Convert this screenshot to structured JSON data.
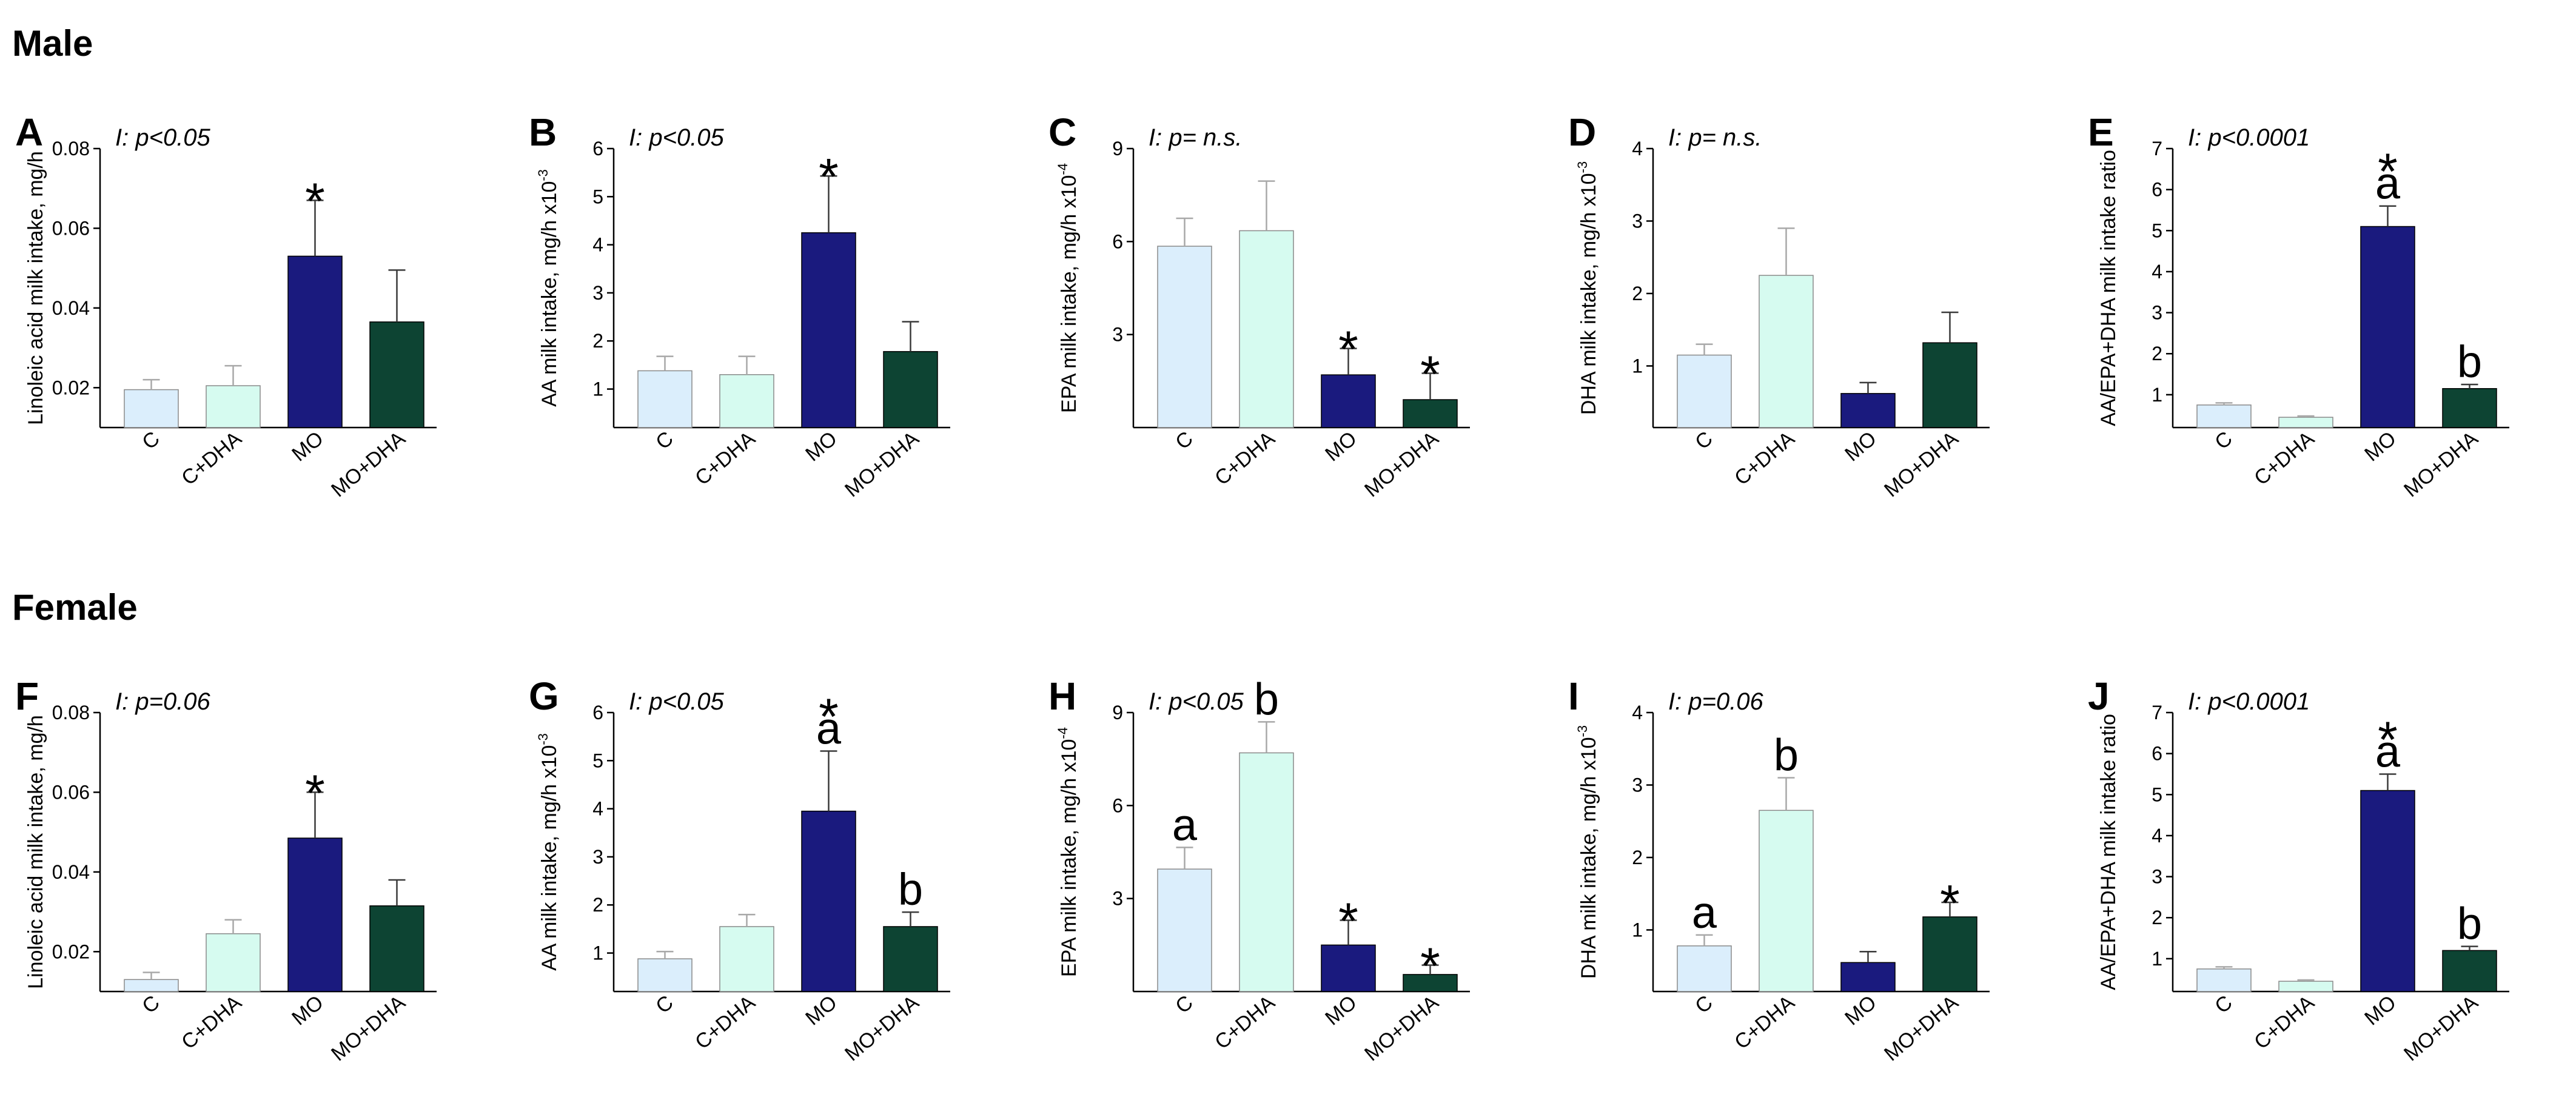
{
  "sections": [
    {
      "title": "Male"
    },
    {
      "title": "Female"
    }
  ],
  "groups": [
    "C",
    "C+DHA",
    "MO",
    "MO+DHA"
  ],
  "colors": [
    "#dbeefc",
    "#d6fbf0",
    "#1a1a7e",
    "#0d4433"
  ],
  "chart_data": [
    {
      "panel": "A",
      "section": "Male",
      "type": "bar",
      "stat": "I: p<0.05",
      "ylabel": "Linoleic acid milk intake, mg/h",
      "ylabel_exp": "",
      "ylim": [
        0.01,
        0.08
      ],
      "ticks": [
        "0.02",
        "0.04",
        "0.06",
        "0.08"
      ],
      "tick_values": [
        0.02,
        0.04,
        0.06,
        0.08
      ],
      "categories": [
        "C",
        "C+DHA",
        "MO",
        "MO+DHA"
      ],
      "values": [
        0.0195,
        0.0205,
        0.053,
        0.0365
      ],
      "errors": [
        0.0025,
        0.005,
        0.014,
        0.013
      ],
      "annotations": [
        [],
        [],
        [
          "*"
        ],
        []
      ]
    },
    {
      "panel": "B",
      "section": "Male",
      "type": "bar",
      "stat": "I: p<0.05",
      "ylabel": "AA milk intake, mg/h x10",
      "ylabel_exp": "-3",
      "ylim": [
        0.2,
        6
      ],
      "ticks": [
        "1",
        "2",
        "3",
        "4",
        "5",
        "6"
      ],
      "tick_values": [
        1,
        2,
        3,
        4,
        5,
        6
      ],
      "categories": [
        "C",
        "C+DHA",
        "MO",
        "MO+DHA"
      ],
      "values": [
        1.38,
        1.3,
        4.25,
        1.78
      ],
      "errors": [
        0.3,
        0.38,
        1.18,
        0.62
      ],
      "annotations": [
        [],
        [],
        [
          "*"
        ],
        []
      ]
    },
    {
      "panel": "C",
      "section": "Male",
      "type": "bar",
      "stat": "I: p= n.s.",
      "ylabel": "EPA milk intake, mg/h x10",
      "ylabel_exp": "-4",
      "ylim": [
        0,
        9
      ],
      "ticks": [
        "3",
        "6",
        "9"
      ],
      "tick_values": [
        3,
        6,
        9
      ],
      "categories": [
        "C",
        "C+DHA",
        "MO",
        "MO+DHA"
      ],
      "values": [
        5.85,
        6.35,
        1.7,
        0.9
      ],
      "errors": [
        0.9,
        1.6,
        0.85,
        0.85
      ],
      "annotations": [
        [],
        [],
        [
          "*"
        ],
        [
          "*"
        ]
      ]
    },
    {
      "panel": "D",
      "section": "Male",
      "type": "bar",
      "stat": "I: p= n.s.",
      "ylabel": "DHA milk intake, mg/h x10",
      "ylabel_exp": "-3",
      "ylim": [
        0.15,
        4
      ],
      "ticks": [
        "1",
        "2",
        "3",
        "4"
      ],
      "tick_values": [
        1,
        2,
        3,
        4
      ],
      "categories": [
        "C",
        "C+DHA",
        "MO",
        "MO+DHA"
      ],
      "values": [
        1.15,
        2.25,
        0.62,
        1.32
      ],
      "errors": [
        0.15,
        0.65,
        0.15,
        0.42
      ],
      "annotations": [
        [],
        [],
        [],
        []
      ]
    },
    {
      "panel": "E",
      "section": "Male",
      "type": "bar",
      "stat": "I: p<0.0001",
      "ylabel": "AA/EPA+DHA milk intake ratio",
      "ylabel_exp": "",
      "ylim": [
        0.2,
        7
      ],
      "ticks": [
        "1",
        "2",
        "3",
        "4",
        "5",
        "6",
        "7"
      ],
      "tick_values": [
        1,
        2,
        3,
        4,
        5,
        6,
        7
      ],
      "categories": [
        "C",
        "C+DHA",
        "MO",
        "MO+DHA"
      ],
      "values": [
        0.75,
        0.45,
        5.1,
        1.15
      ],
      "errors": [
        0.05,
        0.03,
        0.5,
        0.1
      ],
      "annotations": [
        [],
        [],
        [
          "a",
          "*"
        ],
        [
          "b"
        ]
      ]
    },
    {
      "panel": "F",
      "section": "Female",
      "type": "bar",
      "stat": "I: p=0.06",
      "ylabel": "Linoleic acid milk intake, mg/h",
      "ylabel_exp": "",
      "ylim": [
        0.01,
        0.08
      ],
      "ticks": [
        "0.02",
        "0.04",
        "0.06",
        "0.08"
      ],
      "tick_values": [
        0.02,
        0.04,
        0.06,
        0.08
      ],
      "categories": [
        "C",
        "C+DHA",
        "MO",
        "MO+DHA"
      ],
      "values": [
        0.013,
        0.0245,
        0.0485,
        0.0315
      ],
      "errors": [
        0.0018,
        0.0035,
        0.0115,
        0.0065
      ],
      "annotations": [
        [],
        [],
        [
          "*"
        ],
        []
      ]
    },
    {
      "panel": "G",
      "section": "Female",
      "type": "bar",
      "stat": "I: p<0.05",
      "ylabel": "AA milk intake, mg/h x10",
      "ylabel_exp": "-3",
      "ylim": [
        0.2,
        6
      ],
      "ticks": [
        "1",
        "2",
        "3",
        "4",
        "5",
        "6"
      ],
      "tick_values": [
        1,
        2,
        3,
        4,
        5,
        6
      ],
      "categories": [
        "C",
        "C+DHA",
        "MO",
        "MO+DHA"
      ],
      "values": [
        0.88,
        1.55,
        3.95,
        1.55
      ],
      "errors": [
        0.15,
        0.25,
        1.25,
        0.3
      ],
      "annotations": [
        [],
        [],
        [
          "a",
          "*"
        ],
        [
          "b"
        ]
      ]
    },
    {
      "panel": "H",
      "section": "Female",
      "type": "bar",
      "stat": "I: p<0.05",
      "ylabel": "EPA milk intake, mg/h x10",
      "ylabel_exp": "-4",
      "ylim": [
        0,
        9
      ],
      "ticks": [
        "3",
        "6",
        "9"
      ],
      "tick_values": [
        3,
        6,
        9
      ],
      "categories": [
        "C",
        "C+DHA",
        "MO",
        "MO+DHA"
      ],
      "values": [
        3.95,
        7.7,
        1.5,
        0.55
      ],
      "errors": [
        0.7,
        1.0,
        0.8,
        0.3
      ],
      "annotations": [
        [
          "a"
        ],
        [
          "b"
        ],
        [
          "*"
        ],
        [
          "*"
        ]
      ]
    },
    {
      "panel": "I",
      "section": "Female",
      "type": "bar",
      "stat": "I: p=0.06",
      "ylabel": "DHA milk intake, mg/h x10",
      "ylabel_exp": "-3",
      "ylim": [
        0.15,
        4
      ],
      "ticks": [
        "1",
        "2",
        "3",
        "4"
      ],
      "tick_values": [
        1,
        2,
        3,
        4
      ],
      "categories": [
        "C",
        "C+DHA",
        "MO",
        "MO+DHA"
      ],
      "values": [
        0.78,
        2.65,
        0.55,
        1.18
      ],
      "errors": [
        0.15,
        0.45,
        0.15,
        0.2
      ],
      "annotations": [
        [
          "a"
        ],
        [
          "b"
        ],
        [],
        [
          "*"
        ]
      ]
    },
    {
      "panel": "J",
      "section": "Female",
      "type": "bar",
      "stat": "I: p<0.0001",
      "ylabel": "AA/EPA+DHA milk intake ratio",
      "ylabel_exp": "",
      "ylim": [
        0.2,
        7
      ],
      "ticks": [
        "1",
        "2",
        "3",
        "4",
        "5",
        "6",
        "7"
      ],
      "tick_values": [
        1,
        2,
        3,
        4,
        5,
        6,
        7
      ],
      "categories": [
        "C",
        "C+DHA",
        "MO",
        "MO+DHA"
      ],
      "values": [
        0.75,
        0.45,
        5.1,
        1.2
      ],
      "errors": [
        0.05,
        0.03,
        0.4,
        0.1
      ],
      "annotations": [
        [],
        [],
        [
          "a",
          "*"
        ],
        [
          "b"
        ]
      ]
    }
  ]
}
